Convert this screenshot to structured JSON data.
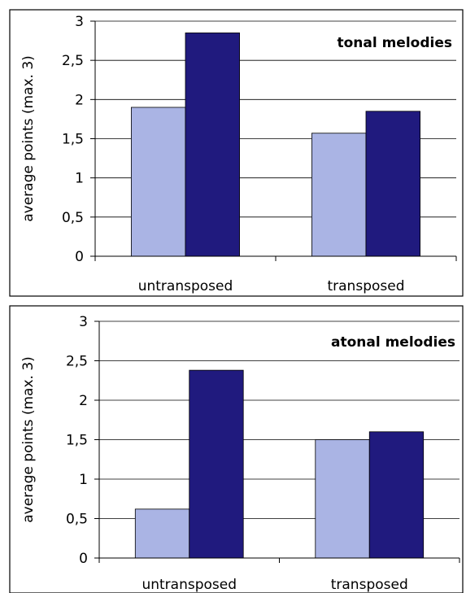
{
  "chart_data": [
    {
      "type": "bar",
      "title": "tonal melodies",
      "ylabel": "average points (max. 3)",
      "categories": [
        "untransposed",
        "transposed"
      ],
      "ylim": [
        0,
        3
      ],
      "yticks": [
        "0",
        "0,5",
        "1",
        "1,5",
        "2",
        "2,5",
        "3"
      ],
      "grid": true,
      "series": [
        {
          "values": [
            1.9,
            1.57
          ],
          "color": "#aab4e4"
        },
        {
          "values": [
            2.85,
            1.85
          ],
          "color": "#201a7e"
        }
      ]
    },
    {
      "type": "bar",
      "title": "atonal melodies",
      "ylabel": "average points (max. 3)",
      "categories": [
        "untransposed",
        "transposed"
      ],
      "ylim": [
        0,
        3
      ],
      "yticks": [
        "0",
        "0,5",
        "1",
        "1,5",
        "2",
        "2,5",
        "3"
      ],
      "grid": true,
      "series": [
        {
          "values": [
            0.62,
            1.5
          ],
          "color": "#aab4e4"
        },
        {
          "values": [
            2.38,
            1.6
          ],
          "color": "#201a7e"
        }
      ]
    }
  ]
}
